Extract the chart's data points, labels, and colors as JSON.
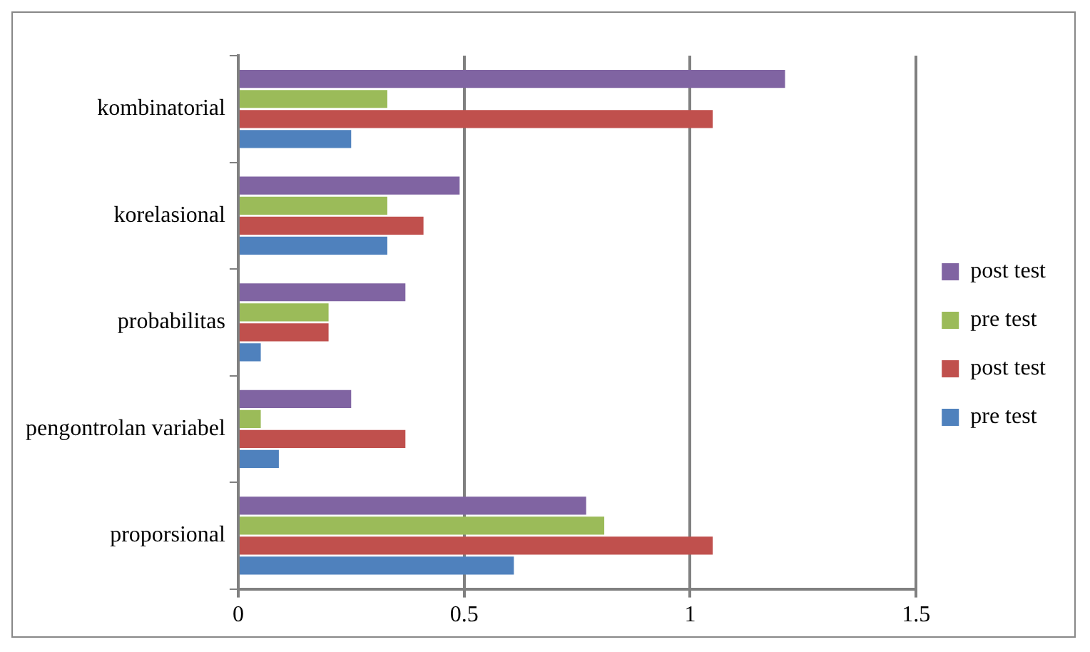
{
  "chart_data": {
    "type": "bar",
    "orientation": "horizontal",
    "categories": [
      "kombinatorial",
      "korelasional",
      "probabilitas",
      "pengontrolan variabel",
      "proporsional"
    ],
    "series": [
      {
        "name": "post test",
        "color": "#8064a2",
        "values": [
          1.21,
          0.49,
          0.37,
          0.25,
          0.77
        ]
      },
      {
        "name": "pre test",
        "color": "#9bbb59",
        "values": [
          0.33,
          0.33,
          0.2,
          0.05,
          0.81
        ]
      },
      {
        "name": "post test",
        "color": "#c0504d",
        "values": [
          1.05,
          0.41,
          0.2,
          0.37,
          1.05
        ]
      },
      {
        "name": "pre test",
        "color": "#4f81bd",
        "values": [
          0.25,
          0.33,
          0.05,
          0.09,
          0.61
        ]
      }
    ],
    "xlim": [
      0,
      1.5
    ],
    "xticks": [
      0,
      0.5,
      1,
      1.5
    ],
    "grid": "x",
    "legend": "right"
  }
}
